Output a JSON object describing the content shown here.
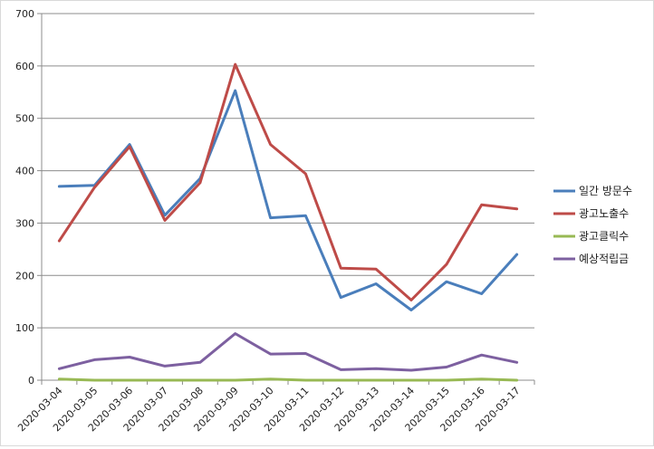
{
  "chart_data": {
    "type": "line",
    "title": "",
    "xlabel": "",
    "ylabel": "",
    "ylim": [
      0,
      700
    ],
    "yticks": [
      0,
      100,
      200,
      300,
      400,
      500,
      600,
      700
    ],
    "grid": true,
    "legend_position": "right",
    "categories": [
      "2020-03-04",
      "2020-03-05",
      "2020-03-06",
      "2020-03-07",
      "2020-03-08",
      "2020-03-09",
      "2020-03-10",
      "2020-03-11",
      "2020-03-12",
      "2020-03-13",
      "2020-03-14",
      "2020-03-15",
      "2020-03-16",
      "2020-03-17"
    ],
    "series": [
      {
        "name": "일간 방문수",
        "color": "#4a7ebb",
        "values": [
          370,
          372,
          450,
          315,
          385,
          553,
          310,
          314,
          158,
          184,
          134,
          188,
          165,
          240
        ]
      },
      {
        "name": "광고노출수",
        "color": "#be4b48",
        "values": [
          266,
          368,
          446,
          305,
          377,
          603,
          450,
          394,
          214,
          212,
          153,
          221,
          335,
          327
        ]
      },
      {
        "name": "광고클릭수",
        "color": "#98b954",
        "values": [
          2,
          0,
          0,
          0,
          0,
          0,
          2,
          0,
          0,
          0,
          0,
          0,
          2,
          0
        ]
      },
      {
        "name": "예상적립금",
        "color": "#7d60a0",
        "values": [
          22,
          39,
          44,
          27,
          34,
          89,
          50,
          51,
          20,
          22,
          19,
          25,
          48,
          34
        ]
      }
    ]
  }
}
